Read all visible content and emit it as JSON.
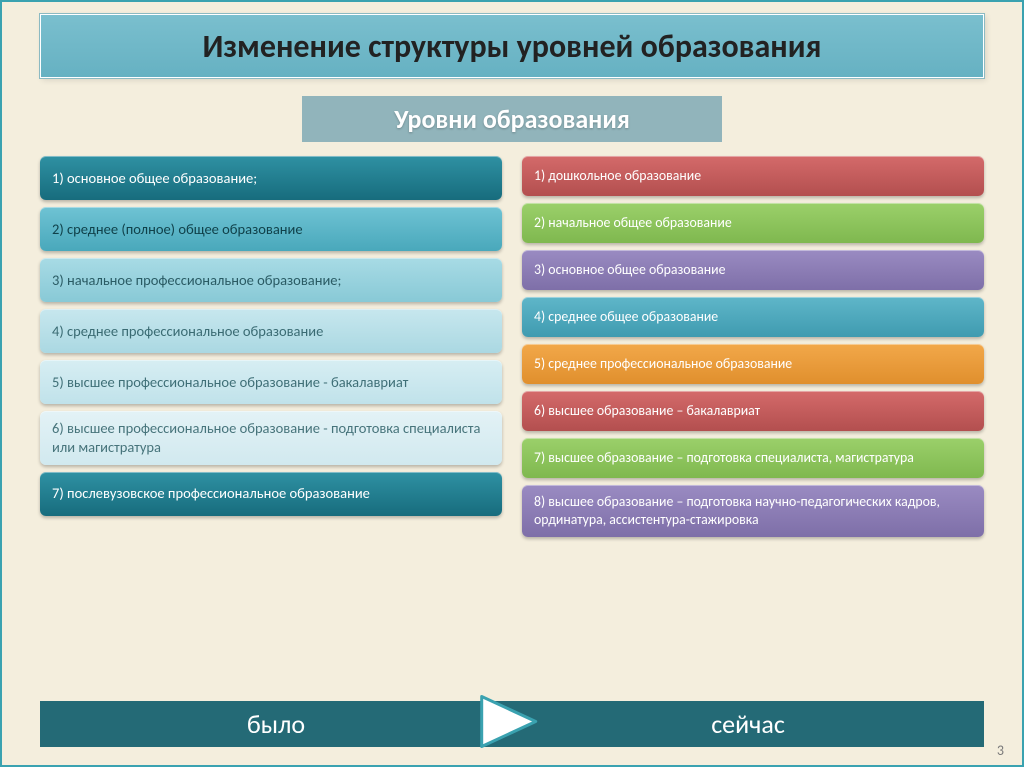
{
  "slide": {
    "background_color": "#f4eedd",
    "border_color": "#3aa2b0",
    "page_number": "3"
  },
  "title": {
    "text": "Изменение структуры уровней образования",
    "bg_gradient_top": "#7abfce",
    "bg_gradient_bottom": "#66b1c2",
    "font_size": 32,
    "font_color": "#222222"
  },
  "subtitle": {
    "text": "Уровни образования",
    "bg_color": "#91b4bb",
    "font_size": 26,
    "font_color": "#ffffff"
  },
  "left_column": {
    "items": [
      {
        "text": "1) основное общее образование;",
        "bg_top": "#2f91a3",
        "bg_bottom": "#176c7d",
        "color": "#ffffff"
      },
      {
        "text": "2) среднее (полное) общее образование",
        "bg_top": "#6fc3d4",
        "bg_bottom": "#49a8bb",
        "color": "#10414a"
      },
      {
        "text": "3) начальное профессиональное образование;",
        "bg_top": "#a8dbe5",
        "bg_bottom": "#88c9d6",
        "color": "#2a5b64"
      },
      {
        "text": "4) среднее профессиональное образование",
        "bg_top": "#c7e7ee",
        "bg_bottom": "#aad8e2",
        "color": "#3a6b73"
      },
      {
        "text": "5) высшее профессиональное образование - бакалавриат",
        "bg_top": "#d7eef3",
        "bg_bottom": "#c0e2ea",
        "color": "#3f6f77"
      },
      {
        "text": "6) высшее профессиональное образование  -  подготовка специалиста   или  магистратура",
        "bg_top": "#e3f2f6",
        "bg_bottom": "#d1e9ef",
        "color": "#47747b"
      },
      {
        "text": "7) послевузовское профессиональное образование",
        "bg_top": "#2f91a3",
        "bg_bottom": "#176c7d",
        "color": "#ffffff"
      }
    ]
  },
  "right_column": {
    "items": [
      {
        "text": "1) дошкольное образование",
        "bg_top": "#d46a6a",
        "bg_bottom": "#b34f4f",
        "color": "#ffffff"
      },
      {
        "text": "2) начальное общее образование",
        "bg_top": "#9bd06a",
        "bg_bottom": "#7fb84f",
        "color": "#ffffff"
      },
      {
        "text": "3) основное общее образование",
        "bg_top": "#9a8bc2",
        "bg_bottom": "#7e6fa8",
        "color": "#ffffff"
      },
      {
        "text": "4) среднее общее образование",
        "bg_top": "#5fb6c9",
        "bg_bottom": "#3f9bb0",
        "color": "#ffffff"
      },
      {
        "text": "5) среднее профессиональное образование",
        "bg_top": "#f2a84a",
        "bg_bottom": "#e08f2d",
        "color": "#ffffff"
      },
      {
        "text": "6) высшее образование – бакалавриат",
        "bg_top": "#d46a6a",
        "bg_bottom": "#b34f4f",
        "color": "#ffffff"
      },
      {
        "text": "7) высшее образование – подготовка специалиста, магистратура",
        "bg_top": "#9bd06a",
        "bg_bottom": "#7fb84f",
        "color": "#ffffff"
      },
      {
        "text": "8) высшее образование – подготовка научно-педагогических кадров, ординатура, ассистентура-стажировка",
        "bg_top": "#9a8bc2",
        "bg_bottom": "#7e6fa8",
        "color": "#ffffff"
      }
    ]
  },
  "bottom": {
    "left_label": "было",
    "right_label": "сейчас",
    "bg_color": "#246a76",
    "font_color": "#ffffff",
    "font_size": 26,
    "arrow_stroke": "#3aa2b0",
    "arrow_fill": "#ffffff"
  }
}
